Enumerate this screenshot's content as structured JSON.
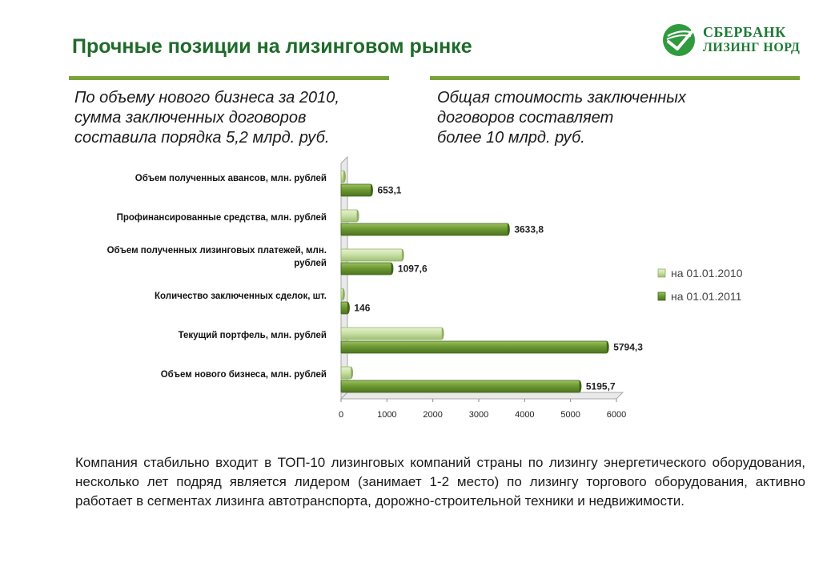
{
  "header": {
    "title": "Прочные позиции на лизинговом рынке",
    "logo_line1": "СБЕРБАНК",
    "logo_line2": "ЛИЗИНГ НОРД"
  },
  "notes": {
    "left": [
      "По объему нового бизнеса за 2010,",
      "сумма заключенных договоров",
      "составила порядка 5,2 млрд. руб."
    ],
    "right": [
      "Общая стоимость заключенных",
      "договоров  составляет",
      "более 10 млрд. руб."
    ]
  },
  "colors": {
    "brand_green": "#1e6b2a",
    "accent_line": "#79a33a",
    "series_2010": "#c7dfa2",
    "series_2011": "#6e9a34"
  },
  "chart_data": {
    "type": "bar",
    "orientation": "horizontal",
    "categories": [
      "Объем полученных авансов, млн. рублей",
      "Профинансированные средства, млн. рублей",
      "Объем полученных лизинговых платежей, млн. рублей",
      "Количество заключенных сделок, шт.",
      "Текущий портфель, млн. рублей",
      "Объем нового бизнеса, млн. рублей"
    ],
    "category_lines": [
      [
        "Объем полученных авансов, млн. рублей"
      ],
      [
        "Профинансированные средства, млн. рублей"
      ],
      [
        "Объем полученных лизинговых платежей, млн.",
        "рублей"
      ],
      [
        "Количество заключенных сделок, шт."
      ],
      [
        "Текущий портфель, млн. рублей"
      ],
      [
        "Объем нового бизнеса, млн. рублей"
      ]
    ],
    "series": [
      {
        "name": "на 01.01.2010",
        "values": [
          60,
          350,
          1330,
          40,
          2200,
          220
        ]
      },
      {
        "name": "на 01.01.2011",
        "values": [
          653.1,
          3633.8,
          1097.6,
          146,
          5794.3,
          5195.7
        ]
      }
    ],
    "data_labels": [
      "653,1",
      "3633,8",
      "1097,6",
      "146",
      "5794,3",
      "5195,7"
    ],
    "xlim": [
      0,
      6000
    ],
    "xticks": [
      0,
      1000,
      2000,
      3000,
      4000,
      5000,
      6000
    ],
    "legend_position": "right",
    "grid": false
  },
  "summary": "Компания стабильно входит в ТОП-10 лизинговых компаний страны по лизингу энергетического оборудования, несколько лет подряд является лидером (занимает 1-2 место) по лизингу торгового оборудования, активно  работает в сегментах лизинга автотранспорта, дорожно-строительной техники и недвижимости."
}
